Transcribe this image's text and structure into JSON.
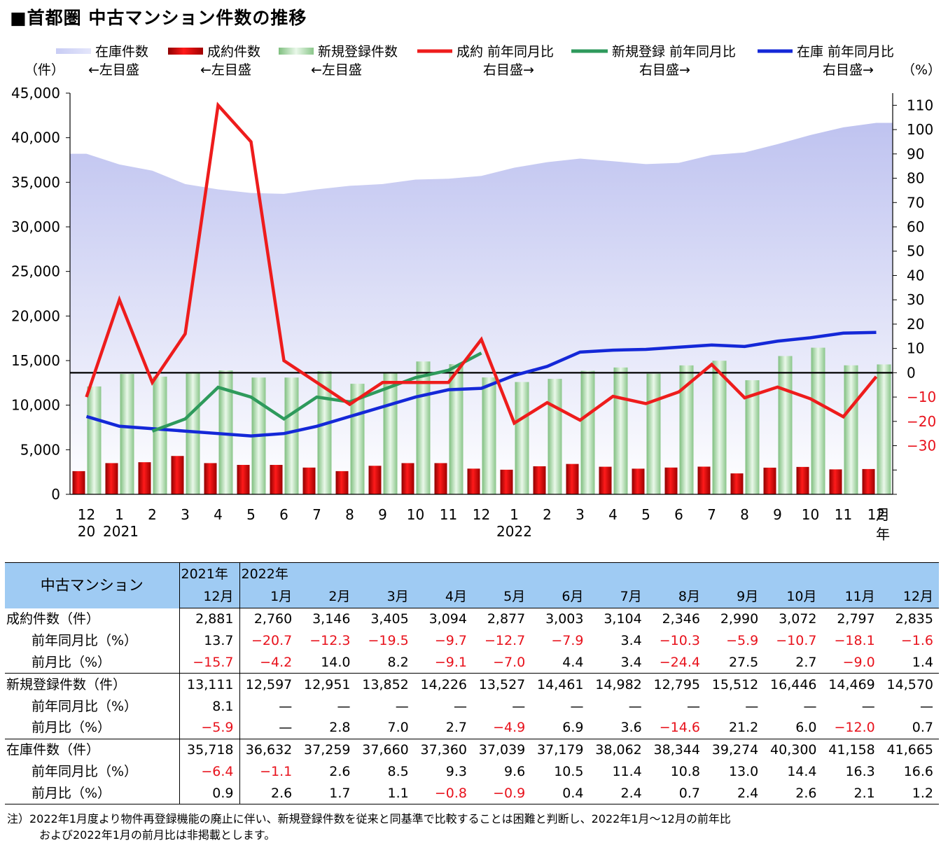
{
  "title": "■首都圏 中古マンション件数の推移",
  "chart_data": {
    "type": "bar",
    "categories": [
      "12",
      "1",
      "2",
      "3",
      "4",
      "5",
      "6",
      "7",
      "8",
      "9",
      "10",
      "11",
      "12",
      "1",
      "2",
      "3",
      "4",
      "5",
      "6",
      "7",
      "8",
      "9",
      "10",
      "11",
      "12"
    ],
    "x_year_labels": [
      {
        "index": 0,
        "label": "20"
      },
      {
        "index": 1,
        "label": "2021"
      },
      {
        "index": 13,
        "label": "2022"
      }
    ],
    "x_unit_month": "月",
    "x_unit_year": "年",
    "y_left": {
      "unit": "（件）",
      "range": [
        0,
        45000
      ],
      "ticks": [
        0,
        5000,
        10000,
        15000,
        20000,
        25000,
        30000,
        35000,
        40000,
        45000
      ],
      "tick_labels": [
        "0",
        "5,000",
        "10,000",
        "15,000",
        "20,000",
        "25,000",
        "30,000",
        "35,000",
        "40,000",
        "45,000"
      ]
    },
    "y_right": {
      "unit": "（%）",
      "range": [
        -50,
        115
      ],
      "ticks": [
        -30,
        -20,
        -10,
        0,
        10,
        20,
        30,
        40,
        50,
        60,
        70,
        80,
        90,
        100,
        110
      ],
      "tick_labels": [
        "−30",
        "−20",
        "−10",
        "0",
        "10",
        "20",
        "30",
        "40",
        "50",
        "60",
        "70",
        "80",
        "90",
        "100",
        "110"
      ]
    },
    "zero_line": 0,
    "legend": [
      {
        "name": "在庫件数",
        "axis_note": "←左目盛",
        "color": "#c4c8f2",
        "kind": "area"
      },
      {
        "name": "成約件数",
        "axis_note": "←左目盛",
        "color": "#e01515",
        "kind": "bar"
      },
      {
        "name": "新規登録件数",
        "axis_note": "←左目盛",
        "color": "#a8d8a8",
        "kind": "bar"
      },
      {
        "name": "成約 前年同月比",
        "axis_note": "右目盛→",
        "color": "#ee1c1c",
        "kind": "line"
      },
      {
        "name": "新規登録 前年同月比",
        "axis_note": "右目盛→",
        "color": "#2e9a5c",
        "kind": "line"
      },
      {
        "name": "在庫 前年同月比",
        "axis_note": "右目盛→",
        "color": "#1428d8",
        "kind": "line"
      }
    ],
    "series": [
      {
        "name": "在庫件数",
        "values": [
          38200,
          37000,
          36300,
          34800,
          34200,
          33800,
          33700,
          34200,
          34600,
          34800,
          35300,
          35400,
          35718,
          36632,
          37259,
          37660,
          37360,
          37039,
          37179,
          38062,
          38344,
          39274,
          40300,
          41158,
          41665
        ]
      },
      {
        "name": "成約件数",
        "values": [
          2600,
          3500,
          3600,
          4300,
          3500,
          3300,
          3300,
          3000,
          2600,
          3200,
          3500,
          3500,
          2881,
          2760,
          3146,
          3405,
          3094,
          2877,
          3003,
          3104,
          2346,
          2990,
          3072,
          2797,
          2835
        ]
      },
      {
        "name": "新規登録件数",
        "values": [
          12100,
          13500,
          13200,
          13700,
          13900,
          13100,
          13100,
          13800,
          12400,
          13600,
          14900,
          14600,
          13111,
          12597,
          12951,
          13852,
          14226,
          13527,
          14461,
          14982,
          12795,
          15512,
          16446,
          14469,
          14570
        ]
      },
      {
        "name": "成約 前年同月比",
        "values": [
          -10,
          30,
          -4,
          16,
          110,
          95,
          5,
          -4,
          -13,
          -4,
          -4,
          -4,
          13.7,
          -20.7,
          -12.3,
          -19.5,
          -9.7,
          -12.7,
          -7.9,
          3.4,
          -10.3,
          -5.9,
          -10.7,
          -18.1,
          -1.6
        ]
      },
      {
        "name": "新規登録 前年同月比",
        "values": [
          null,
          null,
          -24,
          -19,
          -6,
          -10,
          -19,
          -10,
          -12,
          -7,
          -2,
          1,
          8.1,
          null,
          null,
          null,
          null,
          null,
          null,
          null,
          null,
          null,
          null,
          null,
          null
        ]
      },
      {
        "name": "在庫 前年同月比",
        "values": [
          -18,
          -22,
          -23,
          -24,
          -25,
          -26,
          -25,
          -22,
          -18,
          -14,
          -10,
          -7,
          -6.4,
          -1.1,
          2.6,
          8.5,
          9.3,
          9.6,
          10.5,
          11.4,
          10.8,
          13.0,
          14.4,
          16.3,
          16.6
        ]
      }
    ]
  },
  "table": {
    "header_main": "中古マンション",
    "year_2021": "2021年",
    "year_2022": "2022年",
    "months": [
      "12月",
      "1月",
      "2月",
      "3月",
      "4月",
      "5月",
      "6月",
      "7月",
      "8月",
      "9月",
      "10月",
      "11月",
      "12月"
    ],
    "groups": [
      {
        "rows": [
          {
            "label": "成約件数（件）",
            "sub": false,
            "values": [
              "2,881",
              "2,760",
              "3,146",
              "3,405",
              "3,094",
              "2,877",
              "3,003",
              "3,104",
              "2,346",
              "2,990",
              "3,072",
              "2,797",
              "2,835"
            ]
          },
          {
            "label": "前年同月比（%）",
            "sub": true,
            "values": [
              "13.7",
              "−20.7",
              "−12.3",
              "−19.5",
              "−9.7",
              "−12.7",
              "−7.9",
              "3.4",
              "−10.3",
              "−5.9",
              "−10.7",
              "−18.1",
              "−1.6"
            ]
          },
          {
            "label": "前月比（%）",
            "sub": true,
            "values": [
              "−15.7",
              "−4.2",
              "14.0",
              "8.2",
              "−9.1",
              "−7.0",
              "4.4",
              "3.4",
              "−24.4",
              "27.5",
              "2.7",
              "−9.0",
              "1.4"
            ]
          }
        ]
      },
      {
        "rows": [
          {
            "label": "新規登録件数（件）",
            "sub": false,
            "values": [
              "13,111",
              "12,597",
              "12,951",
              "13,852",
              "14,226",
              "13,527",
              "14,461",
              "14,982",
              "12,795",
              "15,512",
              "16,446",
              "14,469",
              "14,570"
            ]
          },
          {
            "label": "前年同月比（%）",
            "sub": true,
            "values": [
              "8.1",
              "—",
              "—",
              "—",
              "—",
              "—",
              "—",
              "—",
              "—",
              "—",
              "—",
              "—",
              "—"
            ]
          },
          {
            "label": "前月比（%）",
            "sub": true,
            "values": [
              "−5.9",
              "—",
              "2.8",
              "7.0",
              "2.7",
              "−4.9",
              "6.9",
              "3.6",
              "−14.6",
              "21.2",
              "6.0",
              "−12.0",
              "0.7"
            ]
          }
        ]
      },
      {
        "rows": [
          {
            "label": "在庫件数（件）",
            "sub": false,
            "values": [
              "35,718",
              "36,632",
              "37,259",
              "37,660",
              "37,360",
              "37,039",
              "37,179",
              "38,062",
              "38,344",
              "39,274",
              "40,300",
              "41,158",
              "41,665"
            ]
          },
          {
            "label": "前年同月比（%）",
            "sub": true,
            "values": [
              "−6.4",
              "−1.1",
              "2.6",
              "8.5",
              "9.3",
              "9.6",
              "10.5",
              "11.4",
              "10.8",
              "13.0",
              "14.4",
              "16.3",
              "16.6"
            ]
          },
          {
            "label": "前月比（%）",
            "sub": true,
            "values": [
              "0.9",
              "2.6",
              "1.7",
              "1.1",
              "−0.8",
              "−0.9",
              "0.4",
              "2.4",
              "0.7",
              "2.4",
              "2.6",
              "2.1",
              "1.2"
            ]
          }
        ]
      }
    ],
    "negative_color": "#e8121c"
  },
  "note": {
    "line1": "注）2022年1月度より物件再登録機能の廃止に伴い、新規登録件数を従来と同基準で比較することは困難と判断し、2022年1月～12月の前年比",
    "line2": "および2022年1月の前月比は非掲載とします。"
  }
}
